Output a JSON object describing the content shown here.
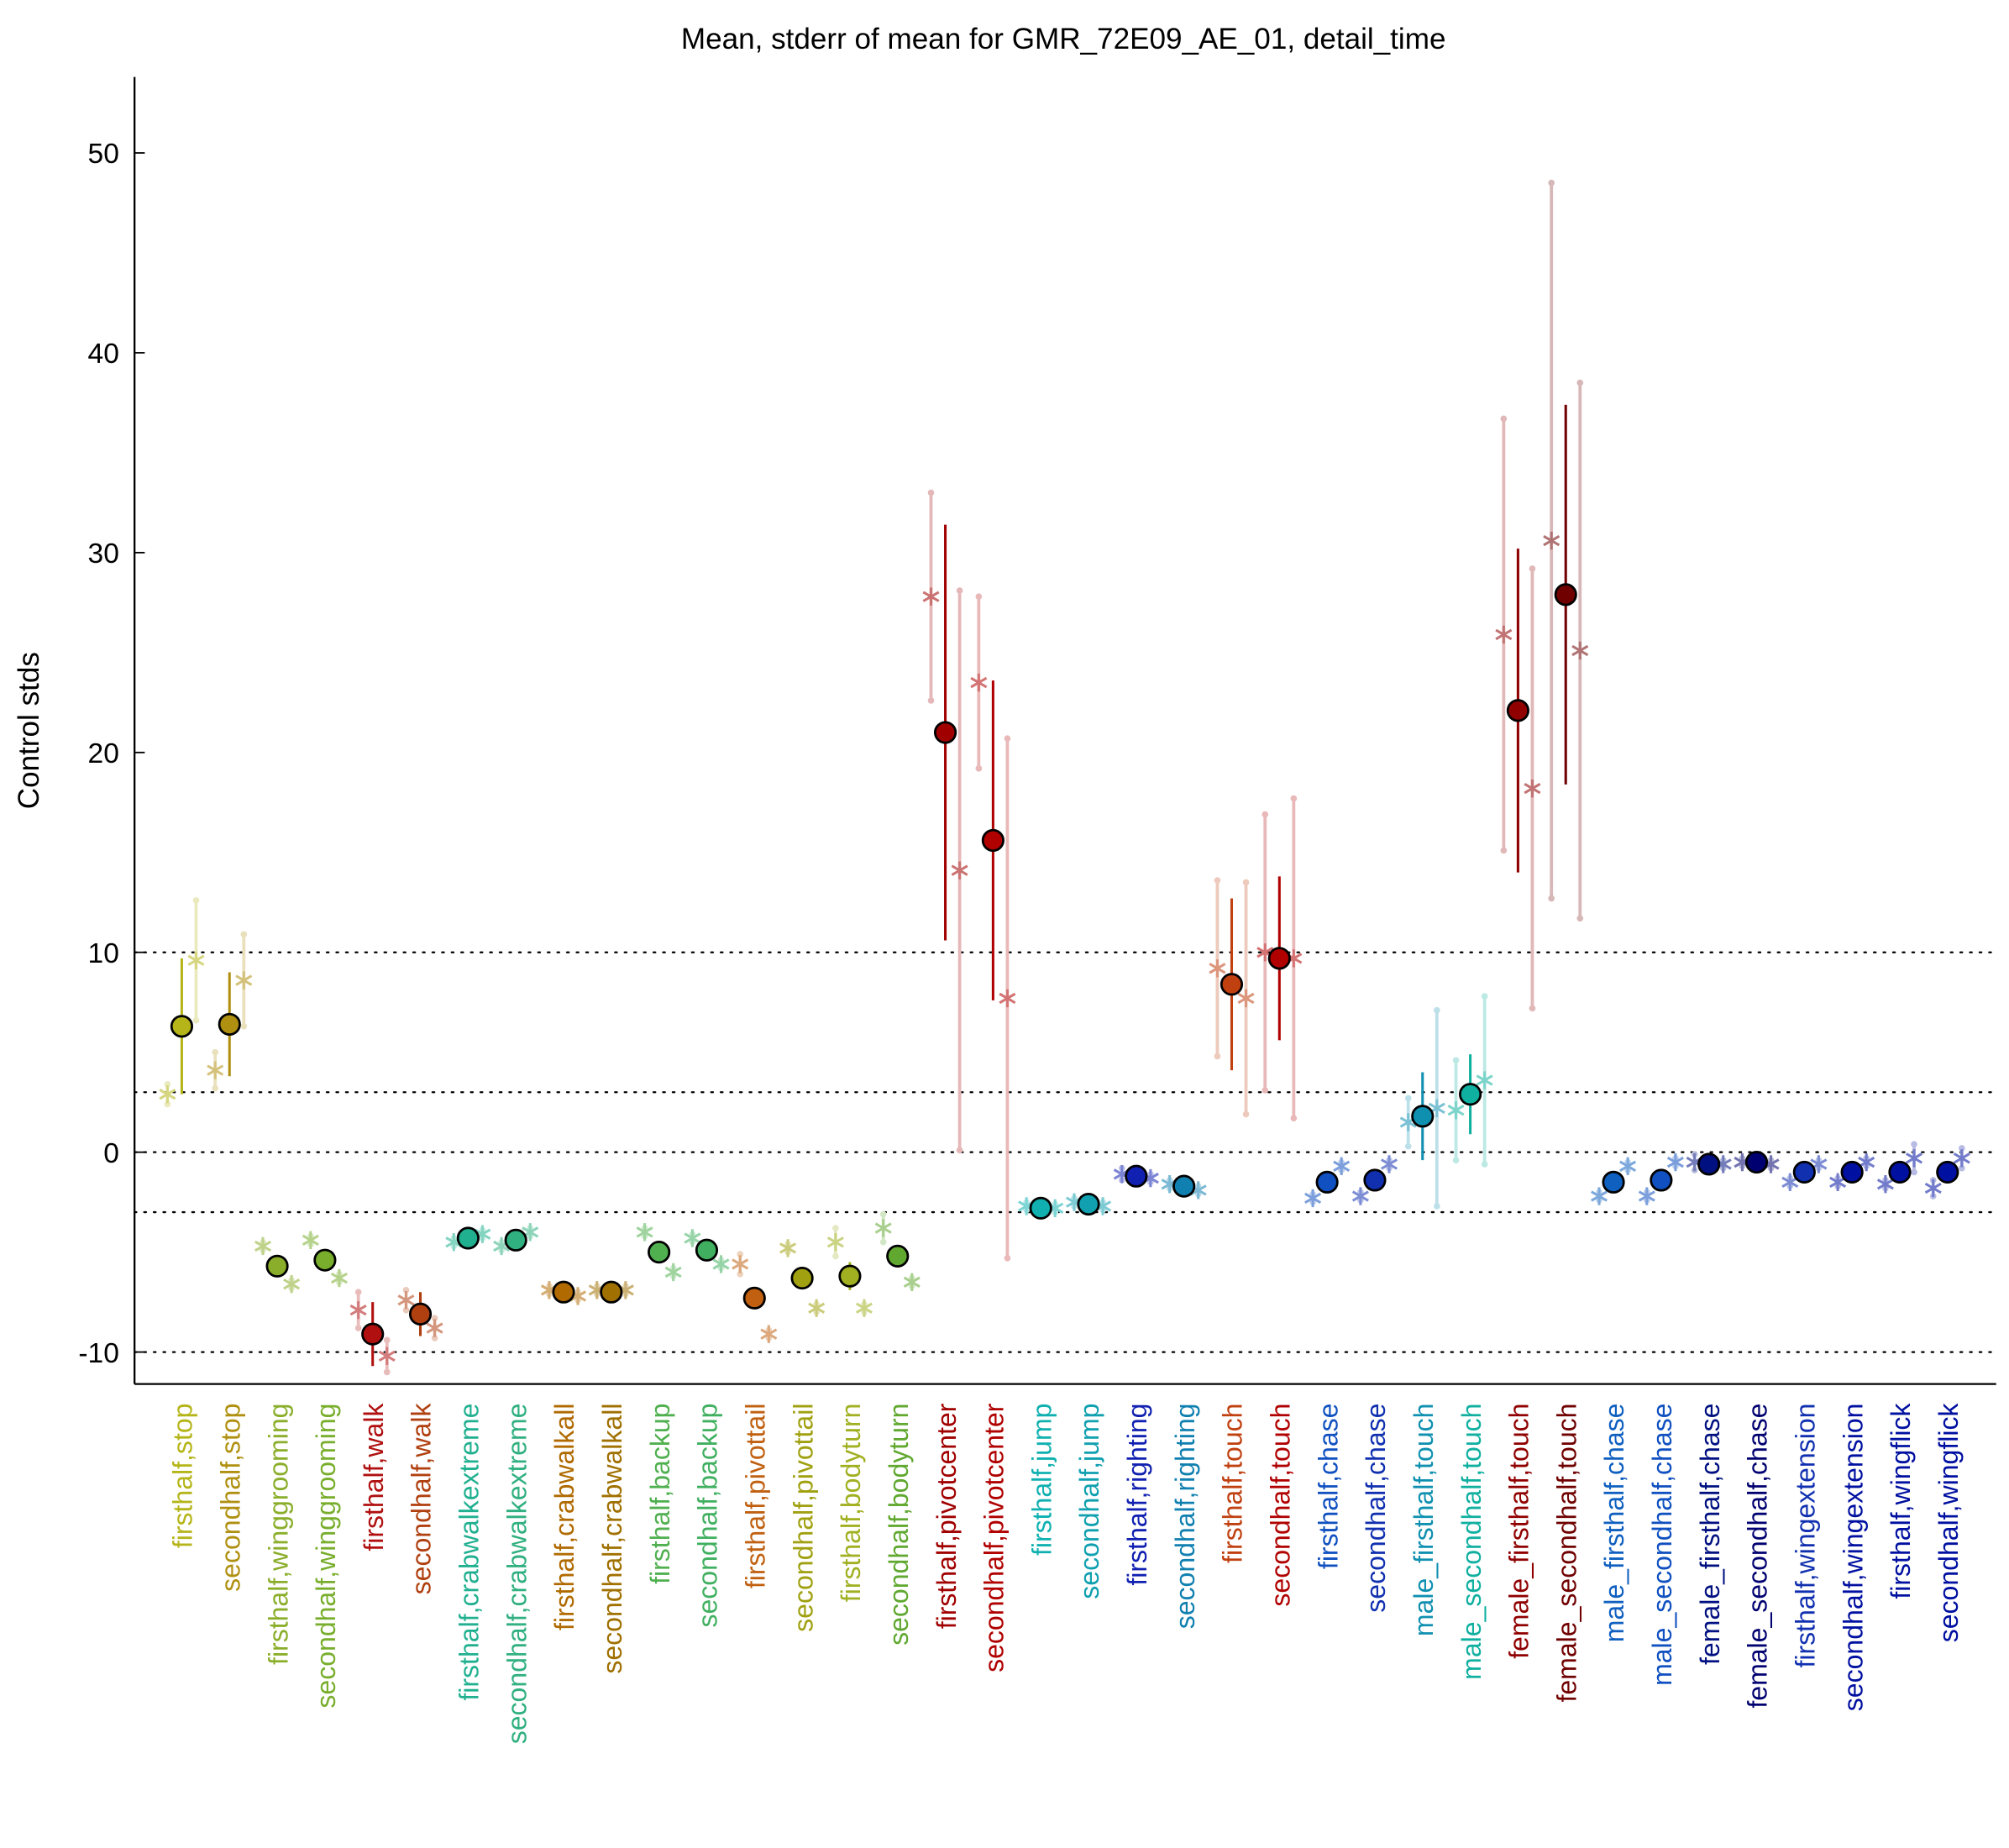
{
  "chart_data": {
    "type": "errorbar",
    "title": "Mean, stderr of mean for GMR_72E09_AE_01, detail_time",
    "ylabel": "Control stds",
    "categories": [
      "firsthalf,stop",
      "secondhalf,stop",
      "firsthalf,winggrooming",
      "secondhalf,winggrooming",
      "firsthalf,walk",
      "secondhalf,walk",
      "firsthalf,crabwalkextreme",
      "secondhalf,crabwalkextreme",
      "firsthalf,crabwalkall",
      "secondhalf,crabwalkall",
      "firsthalf,backup",
      "secondhalf,backup",
      "firsthalf,pivottail",
      "secondhalf,pivottail",
      "firsthalf,bodyturn",
      "secondhalf,bodyturn",
      "firsthalf,pivotcenter",
      "secondhalf,pivotcenter",
      "firsthalf,jump",
      "secondhalf,jump",
      "firsthalf,righting",
      "secondhalf,righting",
      "firsthalf,touch",
      "secondhalf,touch",
      "firsthalf,chase",
      "secondhalf,chase",
      "male_firsthalf,touch",
      "male_secondhalf,touch",
      "female_firsthalf,touch",
      "female_secondhalf,touch",
      "male_firsthalf,chase",
      "male_secondhalf,chase",
      "female_firsthalf,chase",
      "female_secondhalf,chase",
      "firsthalf,wingextension",
      "secondhalf,wingextension",
      "firsthalf,wingflick",
      "secondhalf,wingflick"
    ],
    "colors": [
      "#b5b51a",
      "#b09010",
      "#8aae2a",
      "#78ae2c",
      "#b01010",
      "#b04010",
      "#20b090",
      "#30b080",
      "#b06a00",
      "#a07000",
      "#50b050",
      "#40b060",
      "#c06010",
      "#a0a010",
      "#a0b020",
      "#60a830",
      "#a00000",
      "#b00000",
      "#10b0b0",
      "#10a0b0",
      "#1020b0",
      "#1080b0",
      "#c04010",
      "#b00000",
      "#1050c0",
      "#1030b0",
      "#1090b0",
      "#10b0a0",
      "#900000",
      "#700000",
      "#1060c0",
      "#1050c0",
      "#001080",
      "#000070",
      "#1030b0",
      "#0010a0",
      "#0010a0",
      "#0010a0"
    ],
    "series": [
      {
        "marker": "asterisk",
        "values": [
          2.9,
          4.1,
          -4.7,
          -4.4,
          -7.9,
          -7.4,
          -4.5,
          -4.7,
          -6.9,
          -6.9,
          -4.0,
          -4.3,
          -5.6,
          -4.8,
          -4.5,
          -3.8,
          27.8,
          23.5,
          -2.7,
          -2.5,
          -1.1,
          -1.6,
          9.2,
          10.0,
          -2.3,
          -2.2,
          1.5,
          2.1,
          25.9,
          30.6,
          -2.2,
          -2.2,
          -0.5,
          -0.5,
          -1.5,
          -1.5,
          -1.6,
          -1.8
        ],
        "errors": [
          0.5,
          0.9,
          0.2,
          0.2,
          0.9,
          0.5,
          0.2,
          0.2,
          0.2,
          0.2,
          0.2,
          0.2,
          0.5,
          0.2,
          0.7,
          0.7,
          5.2,
          4.3,
          0.2,
          0.2,
          0.3,
          0.2,
          4.4,
          6.9,
          0.2,
          0.2,
          1.2,
          2.5,
          10.8,
          17.9,
          0.2,
          0.2,
          0.4,
          0.2,
          0.2,
          0.2,
          0.2,
          0.4
        ]
      },
      {
        "marker": "circle",
        "values": [
          6.3,
          6.4,
          -5.7,
          -5.4,
          -9.1,
          -8.1,
          -4.3,
          -4.4,
          -7.0,
          -7.0,
          -5.0,
          -4.9,
          -7.3,
          -6.3,
          -6.2,
          -5.2,
          21.0,
          15.6,
          -2.8,
          -2.6,
          -1.2,
          -1.7,
          8.4,
          9.7,
          -1.5,
          -1.4,
          1.8,
          2.9,
          22.1,
          27.9,
          -1.5,
          -1.4,
          -0.6,
          -0.5,
          -1.0,
          -1.0,
          -1.0,
          -1.0
        ],
        "errors": [
          3.4,
          2.6,
          0.2,
          0.2,
          1.6,
          1.1,
          0.2,
          0.2,
          0.5,
          0.2,
          0.2,
          0.2,
          0.2,
          0.2,
          0.7,
          0.5,
          10.4,
          8.0,
          0.2,
          0.2,
          0.2,
          0.2,
          4.3,
          4.1,
          0.2,
          0.2,
          2.2,
          2.0,
          8.1,
          9.5,
          0.2,
          0.2,
          0.2,
          0.2,
          0.2,
          0.2,
          0.2,
          0.2
        ]
      },
      {
        "marker": "asterisk",
        "values": [
          9.6,
          8.6,
          -6.6,
          -6.3,
          -10.2,
          -8.8,
          -4.1,
          -4.0,
          -7.2,
          -6.9,
          -6.0,
          -5.6,
          -9.1,
          -7.8,
          -7.8,
          -6.5,
          14.1,
          7.7,
          -2.8,
          -2.7,
          -1.3,
          -1.9,
          7.7,
          9.7,
          -0.7,
          -0.6,
          2.2,
          3.6,
          18.2,
          25.1,
          -0.7,
          -0.5,
          -0.6,
          -0.6,
          -0.6,
          -0.5,
          -0.3,
          -0.3
        ],
        "errors": [
          3.0,
          2.3,
          0.2,
          0.2,
          0.8,
          0.5,
          0.2,
          0.2,
          0.2,
          0.2,
          0.2,
          0.2,
          0.2,
          0.2,
          0.2,
          0.2,
          14.0,
          13.0,
          0.2,
          0.2,
          0.2,
          0.2,
          5.8,
          8.0,
          0.2,
          0.2,
          4.9,
          4.2,
          11.0,
          13.4,
          0.2,
          0.2,
          0.2,
          0.2,
          0.2,
          0.2,
          0.7,
          0.5
        ]
      }
    ],
    "xlim": [
      -0.99,
      38.02
    ],
    "ylim": [
      -11.6,
      53.8
    ],
    "yticks": [
      -10,
      0,
      10,
      20,
      30,
      40,
      50
    ],
    "hlines": [
      -10,
      -3,
      0,
      3,
      10
    ]
  }
}
